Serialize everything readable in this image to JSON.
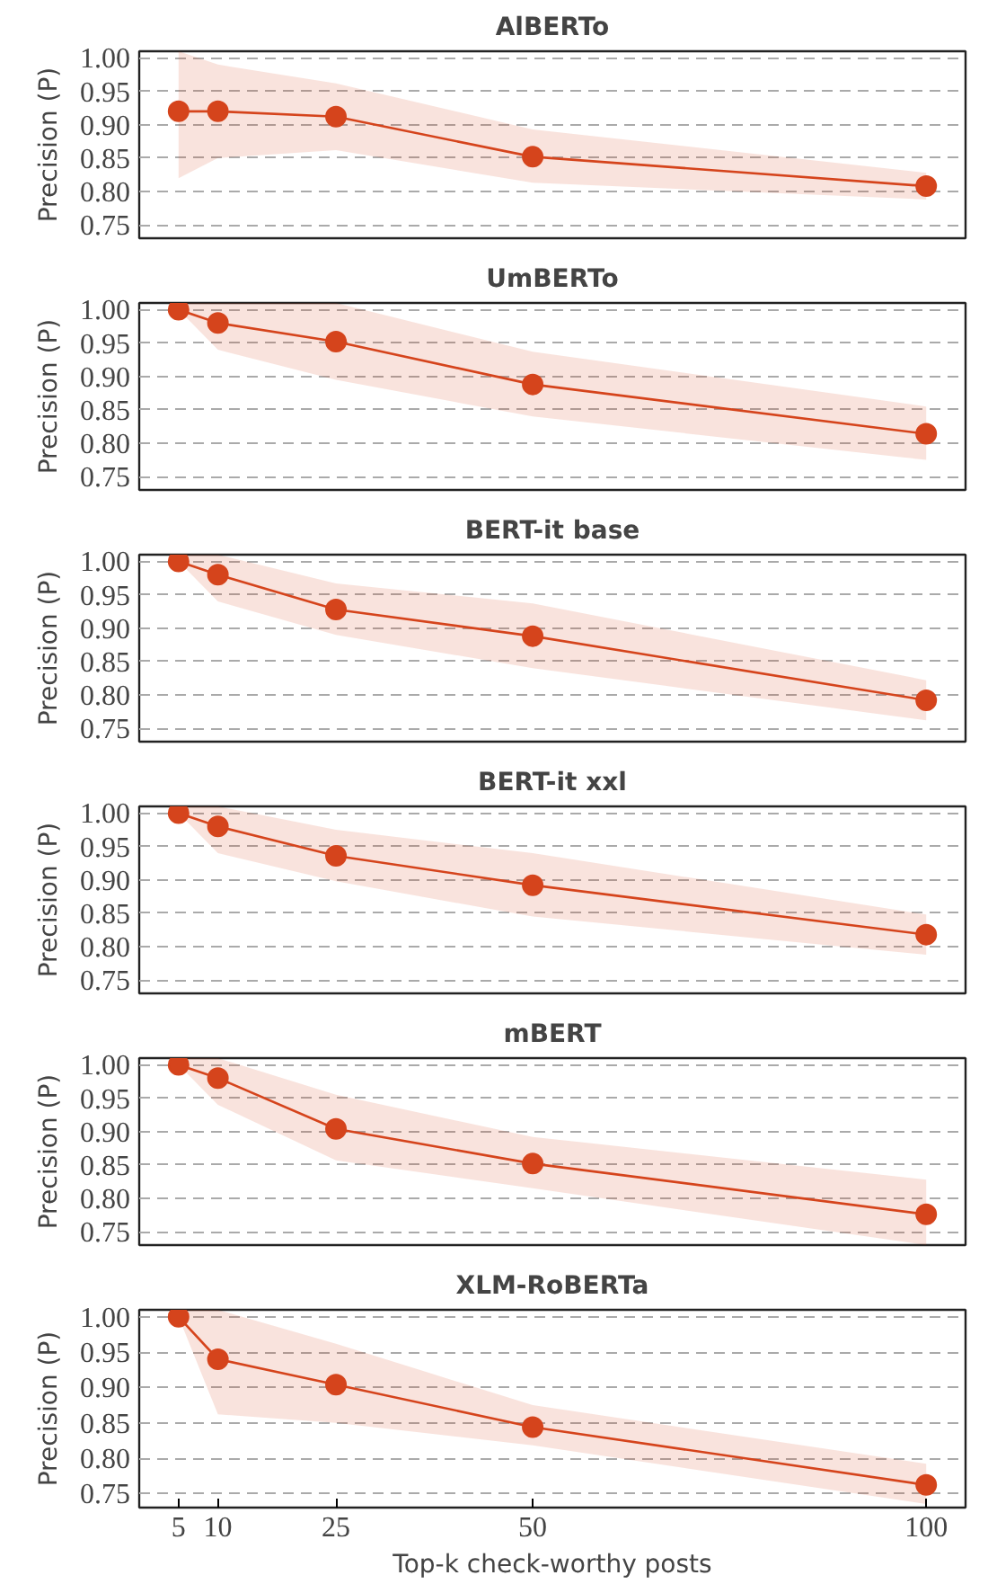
{
  "chart_data": [
    {
      "type": "line",
      "title": "AlBERTo",
      "ylabel": "Precision (P)",
      "x": [
        5,
        10,
        25,
        50,
        100
      ],
      "xlim": [
        0,
        105
      ],
      "xticks": [
        5,
        10,
        25,
        50,
        100
      ],
      "ylim": [
        0.73,
        1.01
      ],
      "yticks": [
        {
          "value": 0.75,
          "label": "0.75"
        },
        {
          "value": 0.8,
          "label": "0.80"
        },
        {
          "value": 0.85,
          "label": "0.85"
        },
        {
          "value": 0.9,
          "label": "0.90"
        },
        {
          "value": 0.95,
          "label": "0.95"
        },
        {
          "value": 1.0,
          "label": "1.00"
        }
      ],
      "grid": "y",
      "marker": "circle",
      "line_style": "solid",
      "tick_labels": "y",
      "series": [
        {
          "color": "#d5441c",
          "values": [
            0.92,
            0.92,
            0.912,
            0.852,
            0.808
          ],
          "lower": [
            0.82,
            0.85,
            0.862,
            0.813,
            0.788
          ],
          "upper": [
            1.01,
            0.99,
            0.962,
            0.893,
            0.828
          ]
        }
      ]
    },
    {
      "type": "line",
      "title": "UmBERTo",
      "ylabel": "Precision (P)",
      "x": [
        5,
        10,
        25,
        50,
        100
      ],
      "xlim": [
        0,
        105
      ],
      "xticks": [
        5,
        10,
        25,
        50,
        100
      ],
      "ylim": [
        0.73,
        1.01
      ],
      "yticks": [
        {
          "value": 0.75,
          "label": "0.75"
        },
        {
          "value": 0.8,
          "label": "0.80"
        },
        {
          "value": 0.85,
          "label": "0.85"
        },
        {
          "value": 0.9,
          "label": "0.90"
        },
        {
          "value": 0.95,
          "label": "0.95"
        },
        {
          "value": 1.0,
          "label": "1.00"
        }
      ],
      "grid": "y",
      "marker": "circle",
      "line_style": "solid",
      "tick_labels": "y",
      "series": [
        {
          "color": "#d5441c",
          "values": [
            1.0,
            0.98,
            0.952,
            0.888,
            0.814
          ],
          "lower": [
            1.0,
            0.94,
            0.895,
            0.84,
            0.775
          ],
          "upper": [
            1.01,
            1.01,
            1.01,
            0.937,
            0.855
          ]
        }
      ]
    },
    {
      "type": "line",
      "title": "BERT-it base",
      "ylabel": "Precision (P)",
      "x": [
        5,
        10,
        25,
        50,
        100
      ],
      "xlim": [
        0,
        105
      ],
      "xticks": [
        5,
        10,
        25,
        50,
        100
      ],
      "ylim": [
        0.73,
        1.01
      ],
      "yticks": [
        {
          "value": 0.75,
          "label": "0.75"
        },
        {
          "value": 0.8,
          "label": "0.80"
        },
        {
          "value": 0.85,
          "label": "0.85"
        },
        {
          "value": 0.9,
          "label": "0.90"
        },
        {
          "value": 0.95,
          "label": "0.95"
        },
        {
          "value": 1.0,
          "label": "1.00"
        }
      ],
      "grid": "y",
      "marker": "circle",
      "line_style": "solid",
      "tick_labels": "y",
      "series": [
        {
          "color": "#d5441c",
          "values": [
            1.0,
            0.98,
            0.928,
            0.888,
            0.792
          ],
          "lower": [
            1.0,
            0.94,
            0.89,
            0.84,
            0.762
          ],
          "upper": [
            1.01,
            1.01,
            0.967,
            0.937,
            0.822
          ]
        }
      ]
    },
    {
      "type": "line",
      "title": "BERT-it xxl",
      "ylabel": "Precision (P)",
      "x": [
        5,
        10,
        25,
        50,
        100
      ],
      "xlim": [
        0,
        105
      ],
      "xticks": [
        5,
        10,
        25,
        50,
        100
      ],
      "ylim": [
        0.73,
        1.01
      ],
      "yticks": [
        {
          "value": 0.75,
          "label": "0.75"
        },
        {
          "value": 0.8,
          "label": "0.80"
        },
        {
          "value": 0.85,
          "label": "0.85"
        },
        {
          "value": 0.9,
          "label": "0.90"
        },
        {
          "value": 0.95,
          "label": "0.95"
        },
        {
          "value": 1.0,
          "label": "1.00"
        }
      ],
      "grid": "y",
      "marker": "circle",
      "line_style": "solid",
      "tick_labels": "y",
      "series": [
        {
          "color": "#d5441c",
          "values": [
            1.0,
            0.98,
            0.936,
            0.892,
            0.818
          ],
          "lower": [
            1.0,
            0.94,
            0.898,
            0.845,
            0.788
          ],
          "upper": [
            1.01,
            1.01,
            0.975,
            0.94,
            0.848
          ]
        }
      ]
    },
    {
      "type": "line",
      "title": "mBERT",
      "ylabel": "Precision (P)",
      "x": [
        5,
        10,
        25,
        50,
        100
      ],
      "xlim": [
        0,
        105
      ],
      "xticks": [
        5,
        10,
        25,
        50,
        100
      ],
      "ylim": [
        0.73,
        1.01
      ],
      "yticks": [
        {
          "value": 0.75,
          "label": "0.75"
        },
        {
          "value": 0.8,
          "label": "0.80"
        },
        {
          "value": 0.85,
          "label": "0.85"
        },
        {
          "value": 0.9,
          "label": "0.90"
        },
        {
          "value": 0.95,
          "label": "0.95"
        },
        {
          "value": 1.0,
          "label": "1.00"
        }
      ],
      "grid": "y",
      "marker": "circle",
      "line_style": "solid",
      "tick_labels": "y",
      "series": [
        {
          "color": "#d5441c",
          "values": [
            1.0,
            0.98,
            0.904,
            0.852,
            0.776
          ],
          "lower": [
            1.0,
            0.94,
            0.857,
            0.815,
            0.73
          ],
          "upper": [
            1.01,
            1.01,
            0.955,
            0.892,
            0.828
          ]
        }
      ]
    },
    {
      "type": "line",
      "title": "XLM-RoBERTa",
      "ylabel": "Precision (P)",
      "xlabel": "Top-k check-worthy posts",
      "x": [
        5,
        10,
        25,
        50,
        100
      ],
      "xlim": [
        0,
        105
      ],
      "xticks": [
        5,
        10,
        25,
        50,
        100
      ],
      "ylim": [
        0.73,
        1.01
      ],
      "yticks": [
        {
          "value": 0.75,
          "label": "0.75"
        },
        {
          "value": 0.8,
          "label": "0.80"
        },
        {
          "value": 0.85,
          "label": "0.85"
        },
        {
          "value": 0.9,
          "label": "0.90"
        },
        {
          "value": 0.95,
          "label": "0.95"
        },
        {
          "value": 1.0,
          "label": "1.00"
        }
      ],
      "grid": "y",
      "marker": "circle",
      "line_style": "solid",
      "series": [
        {
          "color": "#d5441c",
          "values": [
            1.0,
            0.94,
            0.904,
            0.844,
            0.762
          ],
          "lower": [
            1.0,
            0.862,
            0.85,
            0.818,
            0.735
          ],
          "upper": [
            1.01,
            1.01,
            0.962,
            0.875,
            0.792
          ]
        }
      ]
    }
  ]
}
